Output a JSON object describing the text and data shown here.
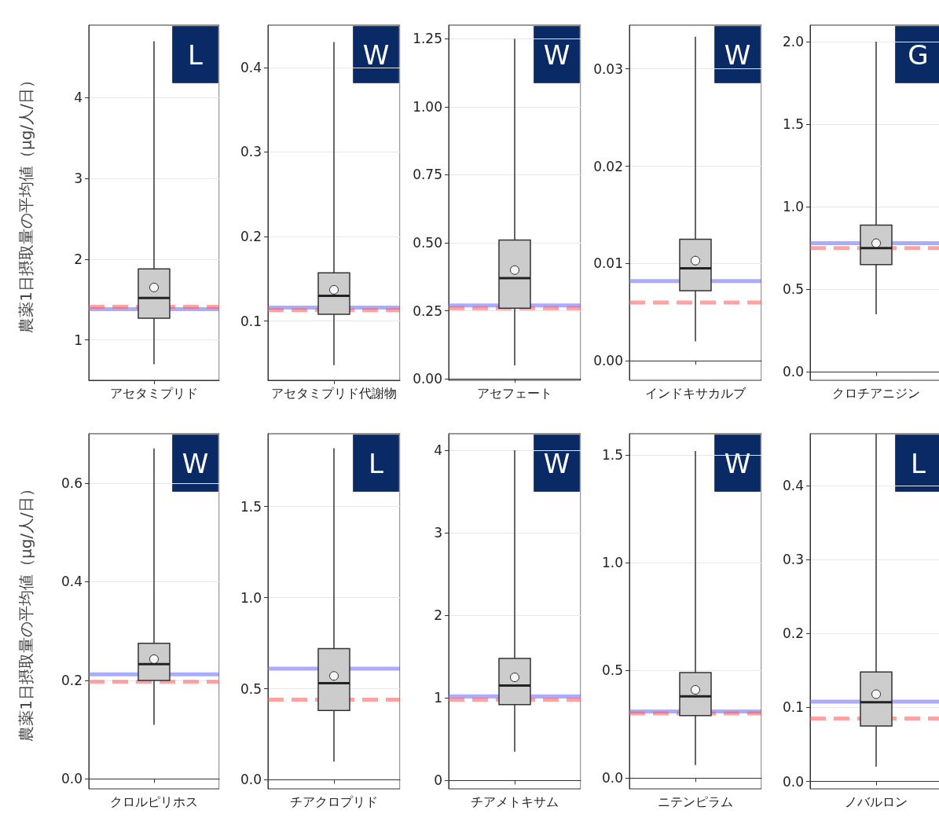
{
  "chart_data": [
    {
      "type": "box",
      "ylabel": "農薬1日摂取量の平均値（μg/人/日）",
      "categories": [
        "アセタミプリド"
      ],
      "ylim": [
        0.5,
        4.9
      ],
      "yticks": [
        1,
        2,
        3,
        4
      ],
      "grid": true,
      "annotations": [
        "L"
      ],
      "series": [
        {
          "color": "#cccccc",
          "boxes": [
            {
              "low": 0.7,
              "q1": 1.27,
              "median": 1.52,
              "q3": 1.88,
              "high": 4.7
            }
          ]
        },
        {
          "type": "scatter",
          "x": [
            "アセタミプリド"
          ],
          "values": [
            1.65
          ],
          "color": "#ffffff",
          "marker": "circle"
        }
      ],
      "ref_lines": [
        {
          "axis": "y",
          "value": 1.38,
          "color": "#6666ff",
          "line_style": "solid"
        },
        {
          "axis": "y",
          "value": 1.41,
          "color": "#ff5555",
          "line_style": "dashed"
        }
      ]
    },
    {
      "type": "box",
      "categories": [
        "アセタミプリド代謝物"
      ],
      "ylim": [
        0.03,
        0.45
      ],
      "yticks": [
        0.1,
        0.2,
        0.3,
        0.4
      ],
      "grid": true,
      "annotations": [
        "W"
      ],
      "series": [
        {
          "color": "#cccccc",
          "boxes": [
            {
              "low": 0.048,
              "q1": 0.108,
              "median": 0.13,
              "q3": 0.157,
              "high": 0.43
            }
          ]
        },
        {
          "type": "scatter",
          "x": [
            "アセタミプリド代謝物"
          ],
          "values": [
            0.137
          ],
          "color": "#ffffff",
          "marker": "circle"
        }
      ],
      "ref_lines": [
        {
          "axis": "y",
          "value": 0.116,
          "color": "#6666ff",
          "line_style": "solid"
        },
        {
          "axis": "y",
          "value": 0.113,
          "color": "#ff5555",
          "line_style": "dashed"
        }
      ]
    },
    {
      "type": "box",
      "categories": [
        "アセフェート"
      ],
      "ylim": [
        -0.005,
        1.3
      ],
      "yticks": [
        {
          "value": 0,
          "label": "0.00"
        },
        0.25,
        {
          "value": 0.5,
          "label": "0.50"
        },
        0.75,
        {
          "value": 1,
          "label": "1.00"
        },
        1.25
      ],
      "grid": true,
      "annotations": [
        "W"
      ],
      "series": [
        {
          "color": "#cccccc",
          "boxes": [
            {
              "low": 0.05,
              "q1": 0.26,
              "median": 0.37,
              "q3": 0.51,
              "high": 1.25
            }
          ]
        },
        {
          "type": "scatter",
          "x": [
            "アセフェート"
          ],
          "values": [
            0.4
          ],
          "color": "#ffffff",
          "marker": "circle"
        }
      ],
      "ref_lines": [
        {
          "axis": "y",
          "value": 0.27,
          "color": "#6666ff",
          "line_style": "solid"
        },
        {
          "axis": "y",
          "value": 0.26,
          "color": "#ff5555",
          "line_style": "dashed"
        }
      ]
    },
    {
      "type": "box",
      "categories": [
        "インドキサカルブ"
      ],
      "ylim": [
        -0.002,
        0.0345
      ],
      "yticks": [
        {
          "value": 0,
          "label": "0.00"
        },
        0.01,
        0.02,
        0.03
      ],
      "grid": true,
      "annotations": [
        "W"
      ],
      "series": [
        {
          "color": "#cccccc",
          "boxes": [
            {
              "low": 0.002,
              "q1": 0.0072,
              "median": 0.0095,
              "q3": 0.0125,
              "high": 0.0333
            }
          ]
        },
        {
          "type": "scatter",
          "x": [
            "インドキサカルブ"
          ],
          "values": [
            0.0103
          ],
          "color": "#ffffff",
          "marker": "circle"
        }
      ],
      "ref_lines": [
        {
          "axis": "y",
          "value": 0.0082,
          "color": "#6666ff",
          "line_style": "solid"
        },
        {
          "axis": "y",
          "value": 0.006,
          "color": "#ff5555",
          "line_style": "dashed"
        }
      ]
    },
    {
      "type": "box",
      "categories": [
        "クロチアニジン"
      ],
      "ylim": [
        -0.05,
        2.1
      ],
      "yticks": [
        {
          "value": 0,
          "label": "0.0"
        },
        0.5,
        {
          "value": 1,
          "label": "1.0"
        },
        1.5,
        {
          "value": 2,
          "label": "2.0"
        }
      ],
      "grid": true,
      "annotations": [
        "G"
      ],
      "series": [
        {
          "color": "#cccccc",
          "boxes": [
            {
              "low": 0.35,
              "q1": 0.65,
              "median": 0.75,
              "q3": 0.89,
              "high": 2.0
            }
          ]
        },
        {
          "type": "scatter",
          "x": [
            "クロチアニジン"
          ],
          "values": [
            0.78
          ],
          "color": "#ffffff",
          "marker": "circle"
        }
      ],
      "ref_lines": [
        {
          "axis": "y",
          "value": 0.78,
          "color": "#6666ff",
          "line_style": "solid"
        },
        {
          "axis": "y",
          "value": 0.75,
          "color": "#ff5555",
          "line_style": "dashed"
        }
      ]
    },
    {
      "type": "box",
      "ylabel": "農薬1日摂取量の平均値（μg/人/日）",
      "categories": [
        "クロルピリホス"
      ],
      "ylim": [
        -0.02,
        0.7
      ],
      "yticks": [
        {
          "value": 0,
          "label": "0.0"
        },
        0.2,
        0.4,
        0.6
      ],
      "grid": true,
      "annotations": [
        "W"
      ],
      "series": [
        {
          "color": "#cccccc",
          "boxes": [
            {
              "low": 0.11,
              "q1": 0.2,
              "median": 0.233,
              "q3": 0.275,
              "high": 0.67
            }
          ]
        },
        {
          "type": "scatter",
          "x": [
            "クロルピリホス"
          ],
          "values": [
            0.243
          ],
          "color": "#ffffff",
          "marker": "circle"
        }
      ],
      "ref_lines": [
        {
          "axis": "y",
          "value": 0.212,
          "color": "#6666ff",
          "line_style": "solid"
        },
        {
          "axis": "y",
          "value": 0.197,
          "color": "#ff5555",
          "line_style": "dashed"
        }
      ]
    },
    {
      "type": "box",
      "categories": [
        "チアクロプリド"
      ],
      "ylim": [
        -0.05,
        1.9
      ],
      "yticks": [
        {
          "value": 0,
          "label": "0.0"
        },
        0.5,
        {
          "value": 1,
          "label": "1.0"
        },
        1.5
      ],
      "grid": true,
      "annotations": [
        "L"
      ],
      "series": [
        {
          "color": "#cccccc",
          "boxes": [
            {
              "low": 0.1,
              "q1": 0.38,
              "median": 0.53,
              "q3": 0.72,
              "high": 1.82
            }
          ]
        },
        {
          "type": "scatter",
          "x": [
            "チアクロプリド"
          ],
          "values": [
            0.57
          ],
          "color": "#ffffff",
          "marker": "circle"
        }
      ],
      "ref_lines": [
        {
          "axis": "y",
          "value": 0.61,
          "color": "#6666ff",
          "line_style": "solid"
        },
        {
          "axis": "y",
          "value": 0.44,
          "color": "#ff5555",
          "line_style": "dashed"
        }
      ]
    },
    {
      "type": "box",
      "categories": [
        "チアメトキサム"
      ],
      "ylim": [
        -0.1,
        4.2
      ],
      "yticks": [
        0,
        1,
        2,
        3,
        4
      ],
      "grid": true,
      "annotations": [
        "W"
      ],
      "series": [
        {
          "color": "#cccccc",
          "boxes": [
            {
              "low": 0.35,
              "q1": 0.92,
              "median": 1.15,
              "q3": 1.48,
              "high": 4.0
            }
          ]
        },
        {
          "type": "scatter",
          "x": [
            "チアメトキサム"
          ],
          "values": [
            1.25
          ],
          "color": "#ffffff",
          "marker": "circle"
        }
      ],
      "ref_lines": [
        {
          "axis": "y",
          "value": 1.02,
          "color": "#6666ff",
          "line_style": "solid"
        },
        {
          "axis": "y",
          "value": 0.98,
          "color": "#ff5555",
          "line_style": "dashed"
        }
      ]
    },
    {
      "type": "box",
      "categories": [
        "ニテンピラム"
      ],
      "ylim": [
        -0.05,
        1.6
      ],
      "yticks": [
        {
          "value": 0,
          "label": "0.0"
        },
        0.5,
        {
          "value": 1,
          "label": "1.0"
        },
        1.5
      ],
      "grid": true,
      "annotations": [
        "W"
      ],
      "series": [
        {
          "color": "#cccccc",
          "boxes": [
            {
              "low": 0.06,
              "q1": 0.29,
              "median": 0.38,
              "q3": 0.49,
              "high": 1.52
            }
          ]
        },
        {
          "type": "scatter",
          "x": [
            "ニテンピラム"
          ],
          "values": [
            0.41
          ],
          "color": "#ffffff",
          "marker": "circle"
        }
      ],
      "ref_lines": [
        {
          "axis": "y",
          "value": 0.31,
          "color": "#6666ff",
          "line_style": "solid"
        },
        {
          "axis": "y",
          "value": 0.3,
          "color": "#ff5555",
          "line_style": "dashed"
        }
      ]
    },
    {
      "type": "box",
      "categories": [
        "ノバルロン"
      ],
      "ylim": [
        -0.01,
        0.47
      ],
      "yticks": [
        {
          "value": 0,
          "label": "0.0"
        },
        0.1,
        0.2,
        0.3,
        0.4
      ],
      "grid": true,
      "annotations": [
        "L"
      ],
      "series": [
        {
          "color": "#cccccc",
          "boxes": [
            {
              "low": 0.02,
              "q1": 0.075,
              "median": 0.107,
              "q3": 0.148,
              "high": 0.47
            }
          ]
        },
        {
          "type": "scatter",
          "x": [
            "ノバルロン"
          ],
          "values": [
            0.118
          ],
          "color": "#ffffff",
          "marker": "circle"
        }
      ],
      "ref_lines": [
        {
          "axis": "y",
          "value": 0.108,
          "color": "#6666ff",
          "line_style": "solid"
        },
        {
          "axis": "y",
          "value": 0.085,
          "color": "#ff5555",
          "line_style": "dashed"
        }
      ]
    }
  ]
}
